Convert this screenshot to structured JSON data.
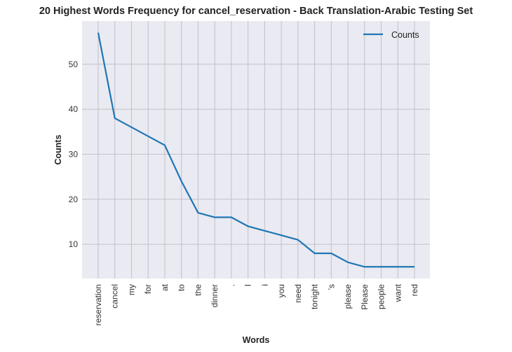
{
  "chart_data": {
    "type": "line",
    "title": "20 Highest Words Frequency for cancel_reservation - Back Translation-Arabic Testing Set",
    "xlabel": "Words",
    "ylabel": "Counts",
    "categories": [
      "reservation",
      "cancel",
      "my",
      "for",
      "at",
      "to",
      "the",
      "dinner",
      ".",
      "I",
      "i",
      "you",
      "need",
      "tonight",
      "'s",
      "please",
      "Please",
      "people",
      "want",
      "red"
    ],
    "series": [
      {
        "name": "Counts",
        "values": [
          57,
          38,
          36,
          34,
          32,
          24,
          17,
          16,
          16,
          14,
          13,
          12,
          11,
          8,
          8,
          6,
          5,
          5,
          5,
          5
        ],
        "color": "#1f77b4"
      }
    ],
    "yticks": [
      10,
      20,
      30,
      40,
      50
    ],
    "ylim": [
      2.4,
      59.6
    ],
    "grid": true,
    "legend": "top-right",
    "background": "#eaeaf2",
    "grid_color": "#c0c0c8"
  }
}
